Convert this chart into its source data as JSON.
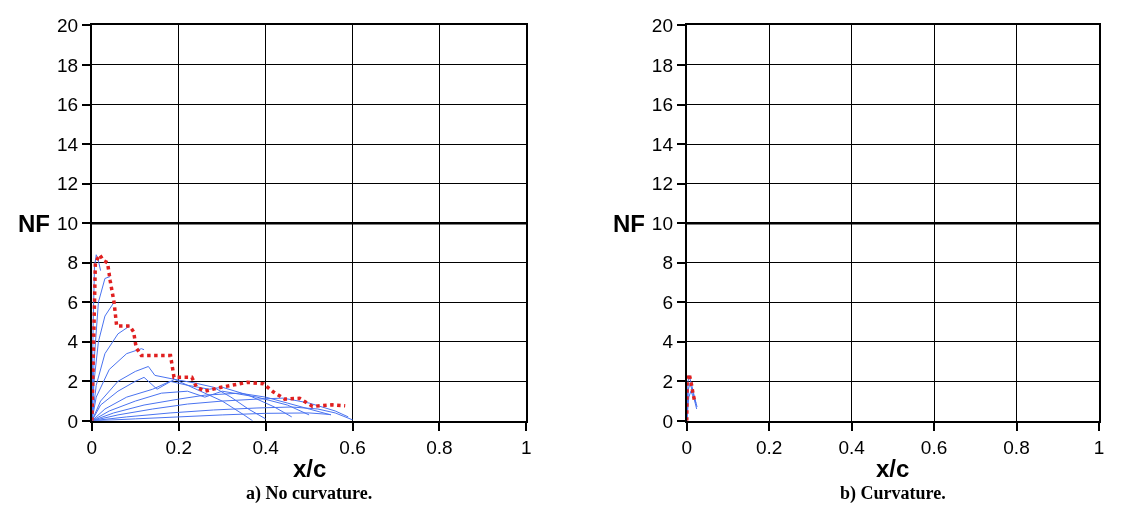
{
  "chart_data": [
    {
      "type": "line",
      "title": "a) No curvature.",
      "xlabel": "x/c",
      "ylabel": "NF",
      "xlim": [
        0,
        1
      ],
      "ylim": [
        0,
        20
      ],
      "xticks": [
        0,
        0.2,
        0.4,
        0.6,
        0.8,
        1
      ],
      "yticks": [
        0,
        2,
        4,
        6,
        8,
        10,
        12,
        14,
        16,
        18,
        20
      ],
      "grid": true,
      "ref_lines": [
        {
          "axis": "y",
          "value": 10,
          "color": "#000000"
        }
      ],
      "series": [
        {
          "color": "#4a73f0",
          "x": [
            0,
            0.003,
            0.006,
            0.01,
            0.014,
            0.02
          ],
          "values": [
            0,
            5,
            7.8,
            8.4,
            8.2,
            7.6
          ]
        },
        {
          "color": "#4a73f0",
          "x": [
            0,
            0.005,
            0.015,
            0.03,
            0.042
          ],
          "values": [
            0,
            3,
            6,
            7.2,
            7.3
          ]
        },
        {
          "color": "#4a73f0",
          "x": [
            0,
            0.005,
            0.015,
            0.03,
            0.051
          ],
          "values": [
            0,
            2,
            4,
            5.3,
            6.0
          ]
        },
        {
          "color": "#4a73f0",
          "x": [
            0,
            0.01,
            0.03,
            0.06,
            0.087
          ],
          "values": [
            0,
            1.8,
            3.4,
            4.4,
            4.8
          ]
        },
        {
          "color": "#4a73f0",
          "x": [
            0,
            0.01,
            0.04,
            0.08,
            0.114,
            0.12
          ],
          "values": [
            0,
            1.2,
            2.6,
            3.4,
            3.65,
            3.6
          ]
        },
        {
          "color": "#4a73f0",
          "x": [
            0,
            0.02,
            0.06,
            0.1,
            0.13,
            0.145,
            0.19,
            0.25,
            0.3,
            0.35,
            0.37
          ],
          "values": [
            0,
            1,
            2,
            2.5,
            2.75,
            2.3,
            2.1,
            1.5,
            1,
            0.3,
            0
          ]
        },
        {
          "color": "#4a73f0",
          "x": [
            0,
            0.02,
            0.06,
            0.1,
            0.12,
            0.15,
            0.19,
            0.24,
            0.28,
            0.32,
            0.36,
            0.4
          ],
          "values": [
            0,
            0.8,
            1.5,
            2,
            2.2,
            1.6,
            2.1,
            1.9,
            1.7,
            1.2,
            0.6,
            0.1
          ]
        },
        {
          "color": "#4a73f0",
          "x": [
            0,
            0.03,
            0.08,
            0.14,
            0.18,
            0.22,
            0.27,
            0.3,
            0.36,
            0.42,
            0.46
          ],
          "values": [
            0,
            0.6,
            1.2,
            1.6,
            2.0,
            1.8,
            1.6,
            1.7,
            1.3,
            0.7,
            0.2
          ]
        },
        {
          "color": "#4a73f0",
          "x": [
            0,
            0.04,
            0.1,
            0.16,
            0.22,
            0.26,
            0.3,
            0.38,
            0.45,
            0.5
          ],
          "values": [
            0,
            0.5,
            1,
            1.4,
            1.5,
            1.2,
            1.5,
            1.2,
            0.8,
            0.3
          ]
        },
        {
          "color": "#4a73f0",
          "x": [
            0,
            0.05,
            0.12,
            0.2,
            0.26,
            0.34,
            0.4,
            0.45,
            0.5,
            0.55
          ],
          "values": [
            0,
            0.4,
            0.8,
            1.1,
            1.3,
            1.4,
            1.2,
            0.9,
            0.6,
            0.3
          ]
        },
        {
          "color": "#4a73f0",
          "x": [
            0,
            0.06,
            0.14,
            0.22,
            0.3,
            0.38,
            0.44,
            0.5,
            0.56,
            0.59
          ],
          "values": [
            0,
            0.3,
            0.6,
            0.85,
            1.0,
            1.1,
            1.15,
            0.9,
            0.5,
            0.2
          ]
        },
        {
          "color": "#4a73f0",
          "x": [
            0,
            0.08,
            0.18,
            0.28,
            0.38,
            0.46,
            0.52,
            0.56,
            0.6
          ],
          "values": [
            0,
            0.2,
            0.4,
            0.55,
            0.65,
            0.7,
            0.6,
            0.4,
            0.05
          ]
        },
        {
          "color": "#4a73f0",
          "x": [
            0.002,
            0.1,
            0.2,
            0.3,
            0.4,
            0.5,
            0.55
          ],
          "values": [
            0,
            0.1,
            0.2,
            0.3,
            0.38,
            0.4,
            0.32
          ]
        },
        {
          "color": "#e02020",
          "line_style": "dotted",
          "x": [
            0,
            0.008,
            0.018,
            0.027,
            0.036,
            0.042,
            0.051,
            0.057,
            0.087,
            0.096,
            0.102,
            0.114,
            0.181,
            0.189,
            0.23,
            0.241,
            0.26,
            0.298,
            0.358,
            0.395,
            0.418,
            0.444,
            0.478,
            0.508,
            0.553,
            0.583
          ],
          "values": [
            0,
            8.0,
            8.4,
            8.1,
            8.0,
            7.1,
            6.0,
            4.8,
            4.8,
            4.5,
            3.7,
            3.3,
            3.3,
            2.2,
            2.2,
            1.7,
            1.5,
            1.7,
            1.95,
            1.87,
            1.46,
            1.1,
            1.14,
            0.73,
            0.81,
            0.76
          ]
        }
      ]
    },
    {
      "type": "line",
      "title": "b) Curvature.",
      "xlabel": "x/c",
      "ylabel": "NF",
      "xlim": [
        0,
        1
      ],
      "ylim": [
        0,
        20
      ],
      "xticks": [
        0,
        0.2,
        0.4,
        0.6,
        0.8,
        1
      ],
      "yticks": [
        0,
        2,
        4,
        6,
        8,
        10,
        12,
        14,
        16,
        18,
        20
      ],
      "grid": true,
      "ref_lines": [
        {
          "axis": "y",
          "value": 10,
          "color": "#000000"
        }
      ],
      "series": [
        {
          "color": "#4a73f0",
          "x": [
            0,
            0.003,
            0.006,
            0.012,
            0.02,
            0.025
          ],
          "values": [
            0,
            2.0,
            2.3,
            1.8,
            1.1,
            0.7
          ]
        },
        {
          "color": "#4a73f0",
          "x": [
            0,
            0.004,
            0.008,
            0.015,
            0.022
          ],
          "values": [
            0,
            1.6,
            1.9,
            1.4,
            0.9
          ]
        },
        {
          "color": "#4a73f0",
          "x": [
            0,
            0.005,
            0.01,
            0.018,
            0.024
          ],
          "values": [
            0,
            1.2,
            1.5,
            1.1,
            0.6
          ]
        },
        {
          "color": "#e02020",
          "line_style": "dotted",
          "x": [
            0,
            0.001,
            0.006,
            0.011,
            0.015,
            0.02
          ],
          "values": [
            0,
            2.3,
            2.35,
            1.9,
            1.4,
            0.9
          ]
        }
      ]
    }
  ]
}
